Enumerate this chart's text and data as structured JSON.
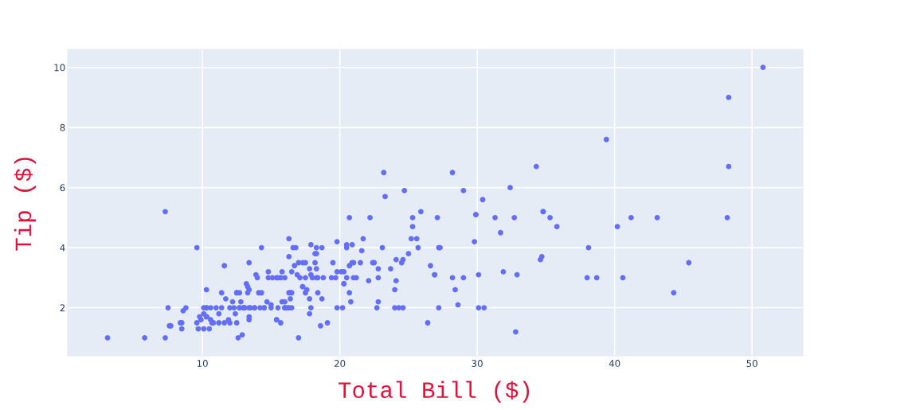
{
  "chart_data": {
    "type": "scatter",
    "xlabel": "Total Bill ($)",
    "ylabel": "Tip ($)",
    "x": [
      17.0,
      10.3,
      21.0,
      23.7,
      24.6,
      25.3,
      8.8,
      26.9,
      15.0,
      14.8,
      10.3,
      35.3,
      15.4,
      18.4,
      14.8,
      21.6,
      10.3,
      16.3,
      17.0,
      20.7,
      17.9,
      20.3,
      15.8,
      39.4,
      19.8,
      17.8,
      13.4,
      12.7,
      21.7,
      19.7,
      9.6,
      18.4,
      15.1,
      20.7,
      17.8,
      24.1,
      16.3,
      16.9,
      18.7,
      31.3,
      16.0,
      17.5,
      13.9,
      9.7,
      30.4,
      18.3,
      22.2,
      32.4,
      28.6,
      18.0,
      12.5,
      10.3,
      34.8,
      9.9,
      25.6,
      19.5,
      38.0,
      26.4,
      11.2,
      48.3,
      20.3,
      13.8,
      11.0,
      18.3,
      17.6,
      20.1,
      16.5,
      3.1,
      20.2,
      15.0,
      12.0,
      17.1,
      26.9,
      25.3,
      14.7,
      10.5,
      17.9,
      27.2,
      22.8,
      17.3,
      19.4,
      16.7,
      10.1,
      32.7,
      16.0,
      34.8,
      13.0,
      18.3,
      24.7,
      21.2,
      29.0,
      22.5,
      5.8,
      16.3,
      22.8,
      40.2,
      27.3,
      12.0,
      21.0,
      12.5,
      11.4,
      15.4,
      44.3,
      22.4,
      20.9,
      15.4,
      20.5,
      25.2,
      18.2,
      14.3,
      14.0,
      7.3,
      38.1,
      24.0,
      25.7,
      17.3,
      29.9,
      10.7,
      12.4,
      24.1,
      11.7,
      13.4,
      14.3,
      16.0,
      12.5,
      29.8,
      8.5,
      14.5,
      11.4,
      22.8,
      19.1,
      20.3,
      11.2,
      12.3,
      18.3,
      8.5,
      10.3,
      14.2,
      16.0,
      13.2,
      17.5,
      34.3,
      41.2,
      27.1,
      16.4,
      8.4,
      18.6,
      11.9,
      9.8,
      7.5,
      14.1,
      13.1,
      17.3,
      24.6,
      19.8,
      29.9,
      48.2,
      25.0,
      13.4,
      16.5,
      21.5,
      12.7,
      16.2,
      13.8,
      17.5,
      24.5,
      20.8,
      31.7,
      10.6,
      10.6,
      50.8,
      15.8,
      7.3,
      31.9,
      16.8,
      32.9,
      17.9,
      14.5,
      9.6,
      34.6,
      34.7,
      23.3,
      45.4,
      23.2,
      40.6,
      20.7,
      20.9,
      30.5,
      18.2,
      23.1,
      15.7,
      19.8,
      28.4,
      15.5,
      16.6,
      7.6,
      10.3,
      43.1,
      13.0,
      13.5,
      18.7,
      12.7,
      13.0,
      16.4,
      20.5,
      16.5,
      26.6,
      38.7,
      24.3,
      12.8,
      30.1,
      25.9,
      48.3,
      13.3,
      28.2,
      12.9,
      28.2,
      11.6,
      7.7,
      30.1,
      12.2,
      13.4,
      8.6,
      16.0,
      13.4,
      16.3,
      10.1,
      20.5,
      13.3,
      22.1,
      24.0,
      15.7,
      11.6,
      10.8,
      15.5,
      10.1,
      12.6,
      32.8,
      35.8,
      29.0,
      27.2,
      22.7,
      17.8,
      18.8
    ],
    "series": [
      {
        "color": "#636efa",
        "values": [
          1.0,
          1.7,
          3.5,
          3.3,
          3.6,
          4.7,
          2.0,
          3.1,
          2.0,
          3.2,
          1.7,
          5.0,
          1.6,
          3.0,
          3.0,
          3.9,
          1.7,
          3.7,
          3.5,
          3.4,
          4.1,
          2.8,
          2.2,
          7.6,
          3.2,
          2.3,
          2.0,
          2.0,
          4.3,
          3.0,
          1.5,
          2.5,
          3.0,
          2.5,
          3.3,
          3.6,
          2.0,
          3.1,
          2.3,
          5.0,
          2.2,
          2.5,
          3.1,
          1.3,
          5.6,
          3.0,
          5.0,
          6.0,
          2.1,
          3.0,
          2.5,
          2.6,
          5.2,
          1.6,
          4.3,
          3.5,
          3.0,
          1.5,
          1.8,
          6.7,
          3.2,
          2.0,
          2.0,
          3.8,
          2.6,
          3.2,
          2.5,
          1.0,
          2.0,
          2.1,
          2.0,
          3.0,
          3.1,
          5.0,
          2.2,
          1.3,
          3.1,
          4.0,
          3.0,
          2.7,
          3.0,
          3.4,
          1.8,
          5.0,
          2.0,
          5.2,
          2.0,
          4.0,
          5.9,
          3.0,
          3.0,
          3.5,
          1.0,
          4.3,
          3.3,
          4.7,
          4.0,
          1.5,
          3.0,
          1.5,
          2.5,
          3.0,
          2.5,
          3.5,
          4.1,
          1.6,
          4.1,
          4.3,
          3.8,
          4.0,
          3.0,
          1.0,
          4.0,
          2.6,
          4.0,
          3.5,
          5.1,
          1.5,
          1.8,
          2.9,
          2.3,
          1.7,
          2.5,
          2.0,
          2.5,
          4.2,
          1.5,
          2.0,
          2.0,
          2.2,
          1.5,
          2.8,
          1.5,
          2.0,
          3.3,
          1.3,
          2.0,
          2.0,
          2.0,
          2.8,
          3.5,
          6.7,
          5.0,
          5.0,
          2.3,
          1.5,
          1.4,
          1.6,
          1.7,
          2.0,
          2.5,
          2.0,
          2.7,
          2.0,
          2.0,
          5.1,
          5.0,
          3.8,
          2.6,
          2.0,
          3.5,
          2.5,
          2.0,
          2.0,
          3.0,
          3.5,
          2.2,
          4.5,
          1.6,
          2.0,
          10.0,
          3.2,
          5.2,
          3.2,
          4.0,
          3.1,
          2.0,
          2.0,
          4.0,
          3.6,
          3.7,
          5.7,
          3.5,
          6.5,
          3.0,
          5.0,
          3.5,
          2.0,
          3.5,
          4.0,
          1.5,
          4.2,
          2.6,
          2.0,
          4.0,
          1.4,
          2.0,
          5.0,
          2.0,
          2.0,
          4.0,
          2.0,
          2.0,
          2.5,
          4.0,
          3.2,
          3.4,
          3.0,
          2.0,
          2.2,
          2.0,
          5.2,
          9.0,
          2.5,
          6.5,
          1.1,
          3.0,
          1.5,
          1.4,
          3.1,
          2.2,
          3.5,
          1.9,
          3.0,
          1.6,
          2.5,
          2.0,
          3.0,
          2.7,
          2.9,
          2.0,
          3.0,
          3.4,
          1.5,
          3.0,
          1.3,
          1.0,
          1.2,
          4.7,
          5.9,
          2.0,
          2.0,
          1.8,
          3.0
        ]
      }
    ],
    "xlim": [
      0.2,
      53.7
    ],
    "ylim": [
      0.4,
      10.6
    ],
    "xticks": [
      10,
      20,
      30,
      40,
      50
    ],
    "yticks": [
      2,
      4,
      6,
      8,
      10
    ],
    "grid": true,
    "marker": "circle"
  }
}
